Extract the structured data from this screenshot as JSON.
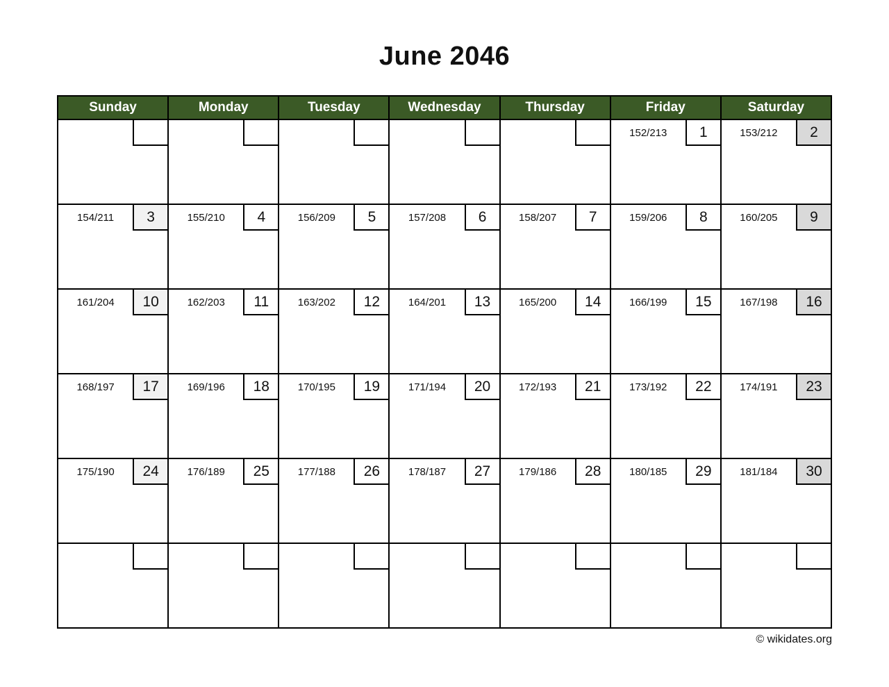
{
  "title": "June 2046",
  "weekdays": [
    "Sunday",
    "Monday",
    "Tuesday",
    "Wednesday",
    "Thursday",
    "Friday",
    "Saturday"
  ],
  "weeks": [
    {
      "cells": [
        {
          "doy": "",
          "day": ""
        },
        {
          "doy": "",
          "day": ""
        },
        {
          "doy": "",
          "day": ""
        },
        {
          "doy": "",
          "day": ""
        },
        {
          "doy": "",
          "day": ""
        },
        {
          "doy": "152/213",
          "day": "1"
        },
        {
          "doy": "153/212",
          "day": "2"
        }
      ]
    },
    {
      "cells": [
        {
          "doy": "154/211",
          "day": "3"
        },
        {
          "doy": "155/210",
          "day": "4"
        },
        {
          "doy": "156/209",
          "day": "5"
        },
        {
          "doy": "157/208",
          "day": "6"
        },
        {
          "doy": "158/207",
          "day": "7"
        },
        {
          "doy": "159/206",
          "day": "8"
        },
        {
          "doy": "160/205",
          "day": "9"
        }
      ]
    },
    {
      "cells": [
        {
          "doy": "161/204",
          "day": "10"
        },
        {
          "doy": "162/203",
          "day": "11"
        },
        {
          "doy": "163/202",
          "day": "12"
        },
        {
          "doy": "164/201",
          "day": "13"
        },
        {
          "doy": "165/200",
          "day": "14"
        },
        {
          "doy": "166/199",
          "day": "15"
        },
        {
          "doy": "167/198",
          "day": "16"
        }
      ]
    },
    {
      "cells": [
        {
          "doy": "168/197",
          "day": "17"
        },
        {
          "doy": "169/196",
          "day": "18"
        },
        {
          "doy": "170/195",
          "day": "19"
        },
        {
          "doy": "171/194",
          "day": "20"
        },
        {
          "doy": "172/193",
          "day": "21"
        },
        {
          "doy": "173/192",
          "day": "22"
        },
        {
          "doy": "174/191",
          "day": "23"
        }
      ]
    },
    {
      "cells": [
        {
          "doy": "175/190",
          "day": "24"
        },
        {
          "doy": "176/189",
          "day": "25"
        },
        {
          "doy": "177/188",
          "day": "26"
        },
        {
          "doy": "178/187",
          "day": "27"
        },
        {
          "doy": "179/186",
          "day": "28"
        },
        {
          "doy": "180/185",
          "day": "29"
        },
        {
          "doy": "181/184",
          "day": "30"
        }
      ]
    },
    {
      "cells": [
        {
          "doy": "",
          "day": ""
        },
        {
          "doy": "",
          "day": ""
        },
        {
          "doy": "",
          "day": ""
        },
        {
          "doy": "",
          "day": ""
        },
        {
          "doy": "",
          "day": ""
        },
        {
          "doy": "",
          "day": ""
        },
        {
          "doy": "",
          "day": ""
        }
      ]
    }
  ],
  "colors": {
    "header_bg": "#3b5a26",
    "header_text": "#ffffff",
    "grid_border": "#000000",
    "sunday_box": "#f2f2f2",
    "saturday_box": "#d9d9d9",
    "weekday_box": "#ffffff"
  },
  "footer": {
    "copyright": "© wikidates.org"
  }
}
